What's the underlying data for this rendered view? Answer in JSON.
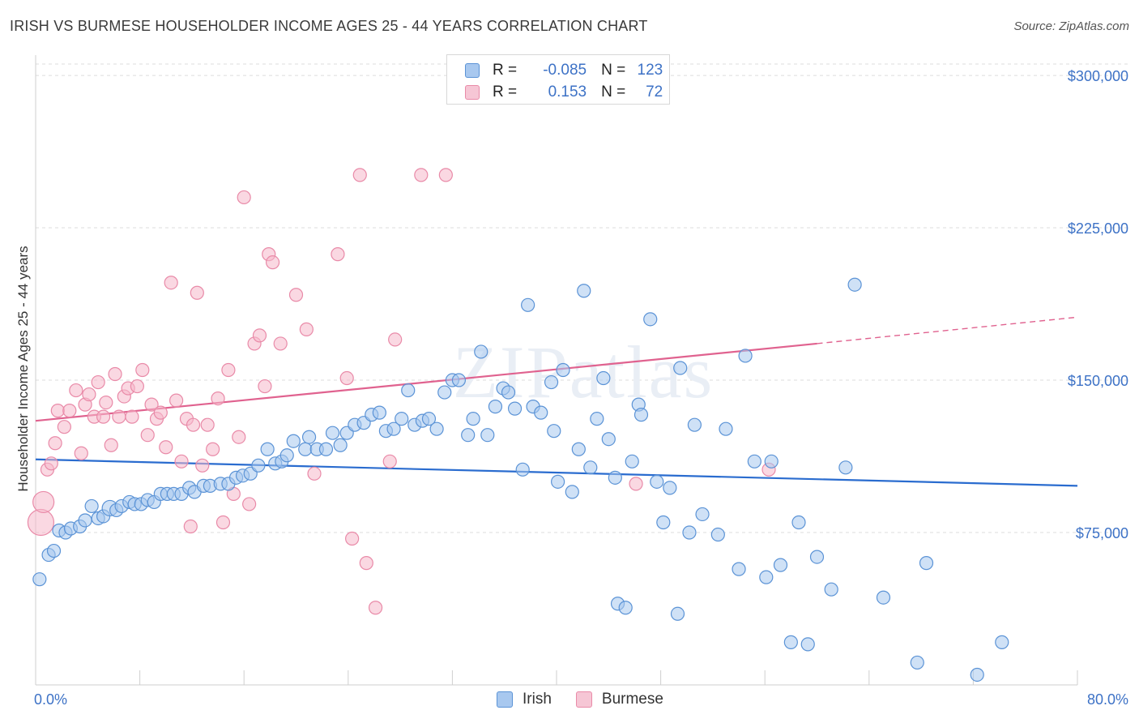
{
  "title": "IRISH VS BURMESE HOUSEHOLDER INCOME AGES 25 - 44 YEARS CORRELATION CHART",
  "source": "Source: ZipAtlas.com",
  "watermark": "ZIPatlas",
  "legend": {
    "rows": [
      {
        "r_label": "R =",
        "r_value": "-0.085",
        "n_label": "N =",
        "n_value": "123"
      },
      {
        "r_label": "R =",
        "r_value": "0.153",
        "n_label": "N =",
        "n_value": "72"
      }
    ]
  },
  "bottom_legend": {
    "irish": "Irish",
    "burmese": "Burmese"
  },
  "colors": {
    "irish_fill": "#a8c8ef",
    "irish_stroke": "#5b93d6",
    "irish_line": "#2a6ccf",
    "burmese_fill": "#f6b8cb",
    "burmese_stroke": "#e98aa8",
    "burmese_line": "#e0628f",
    "axis_text": "#3d72c6",
    "grid": "#dddddd"
  },
  "chart_data": {
    "type": "scatter",
    "title": "IRISH VS BURMESE HOUSEHOLDER INCOME AGES 25 - 44 YEARS CORRELATION CHART",
    "xlabel": "",
    "ylabel": "Householder Income Ages 25 - 44 years",
    "xlim": [
      0,
      80
    ],
    "ylim": [
      0,
      310000
    ],
    "x_tick_labels": [
      "0.0%",
      "80.0%"
    ],
    "y_ticks": [
      75000,
      150000,
      225000,
      300000
    ],
    "y_tick_labels": [
      "$75,000",
      "$150,000",
      "$225,000",
      "$300,000"
    ],
    "grid": true,
    "series": [
      {
        "name": "Irish",
        "trend": {
          "x": [
            0,
            80
          ],
          "y": [
            111000,
            98000
          ]
        },
        "points": [
          [
            0.3,
            52000
          ],
          [
            1.0,
            64000
          ],
          [
            1.4,
            66000
          ],
          [
            1.8,
            76000
          ],
          [
            2.3,
            75000
          ],
          [
            2.7,
            77000
          ],
          [
            3.4,
            78000
          ],
          [
            3.8,
            81000
          ],
          [
            4.3,
            88000
          ],
          [
            4.8,
            82000
          ],
          [
            5.2,
            83000
          ],
          [
            5.7,
            87000
          ],
          [
            6.2,
            86000
          ],
          [
            6.6,
            88000
          ],
          [
            7.2,
            90000
          ],
          [
            7.6,
            89000
          ],
          [
            8.1,
            89000
          ],
          [
            8.6,
            91000
          ],
          [
            9.1,
            90000
          ],
          [
            9.6,
            94000
          ],
          [
            10.1,
            94000
          ],
          [
            10.6,
            94000
          ],
          [
            11.2,
            94000
          ],
          [
            11.8,
            97000
          ],
          [
            12.2,
            95000
          ],
          [
            12.9,
            98000
          ],
          [
            13.4,
            98000
          ],
          [
            14.2,
            99000
          ],
          [
            14.8,
            99000
          ],
          [
            15.4,
            102000
          ],
          [
            15.9,
            103000
          ],
          [
            16.5,
            104000
          ],
          [
            17.1,
            108000
          ],
          [
            17.8,
            116000
          ],
          [
            18.4,
            109000
          ],
          [
            18.9,
            110000
          ],
          [
            19.3,
            113000
          ],
          [
            19.8,
            120000
          ],
          [
            20.7,
            116000
          ],
          [
            21.0,
            122000
          ],
          [
            21.6,
            116000
          ],
          [
            22.3,
            116000
          ],
          [
            22.8,
            124000
          ],
          [
            23.4,
            118000
          ],
          [
            23.9,
            124000
          ],
          [
            24.5,
            128000
          ],
          [
            25.2,
            129000
          ],
          [
            25.8,
            133000
          ],
          [
            26.4,
            134000
          ],
          [
            26.9,
            125000
          ],
          [
            27.5,
            126000
          ],
          [
            28.1,
            131000
          ],
          [
            28.6,
            145000
          ],
          [
            29.1,
            128000
          ],
          [
            29.7,
            130000
          ],
          [
            30.2,
            131000
          ],
          [
            30.8,
            126000
          ],
          [
            31.4,
            144000
          ],
          [
            32.0,
            150000
          ],
          [
            32.5,
            150000
          ],
          [
            33.2,
            123000
          ],
          [
            33.6,
            131000
          ],
          [
            34.2,
            164000
          ],
          [
            34.7,
            123000
          ],
          [
            35.3,
            137000
          ],
          [
            35.9,
            146000
          ],
          [
            36.3,
            144000
          ],
          [
            36.8,
            136000
          ],
          [
            37.4,
            106000
          ],
          [
            37.8,
            187000
          ],
          [
            38.2,
            137000
          ],
          [
            38.8,
            134000
          ],
          [
            39.6,
            149000
          ],
          [
            39.8,
            125000
          ],
          [
            40.1,
            100000
          ],
          [
            40.5,
            155000
          ],
          [
            41.2,
            95000
          ],
          [
            41.7,
            116000
          ],
          [
            42.1,
            194000
          ],
          [
            42.6,
            107000
          ],
          [
            43.1,
            131000
          ],
          [
            43.6,
            151000
          ],
          [
            44.0,
            121000
          ],
          [
            44.5,
            102000
          ],
          [
            44.7,
            40000
          ],
          [
            45.3,
            38000
          ],
          [
            45.8,
            110000
          ],
          [
            46.3,
            138000
          ],
          [
            46.5,
            133000
          ],
          [
            47.2,
            180000
          ],
          [
            47.7,
            100000
          ],
          [
            48.2,
            80000
          ],
          [
            48.7,
            97000
          ],
          [
            49.3,
            35000
          ],
          [
            49.5,
            156000
          ],
          [
            50.2,
            75000
          ],
          [
            50.6,
            128000
          ],
          [
            51.2,
            84000
          ],
          [
            52.4,
            74000
          ],
          [
            53.0,
            126000
          ],
          [
            54.0,
            57000
          ],
          [
            54.5,
            162000
          ],
          [
            55.2,
            110000
          ],
          [
            56.1,
            53000
          ],
          [
            56.5,
            110000
          ],
          [
            57.2,
            59000
          ],
          [
            58.0,
            21000
          ],
          [
            58.6,
            80000
          ],
          [
            59.3,
            20000
          ],
          [
            60.0,
            63000
          ],
          [
            61.1,
            47000
          ],
          [
            62.2,
            107000
          ],
          [
            62.9,
            197000
          ],
          [
            65.1,
            43000
          ],
          [
            67.7,
            11000
          ],
          [
            68.4,
            60000
          ],
          [
            72.3,
            5000
          ],
          [
            74.2,
            21000
          ]
        ]
      },
      {
        "name": "Burmese",
        "trend": {
          "x": [
            0,
            60
          ],
          "y": [
            130000,
            168000
          ]
        },
        "trend_extended": {
          "x": [
            60,
            80
          ],
          "y": [
            168000,
            181000
          ]
        },
        "points": [
          [
            0.4,
            80000
          ],
          [
            0.6,
            90000
          ],
          [
            0.9,
            106000
          ],
          [
            1.2,
            109000
          ],
          [
            1.5,
            119000
          ],
          [
            1.7,
            135000
          ],
          [
            2.2,
            127000
          ],
          [
            2.6,
            135000
          ],
          [
            3.1,
            145000
          ],
          [
            3.5,
            114000
          ],
          [
            3.8,
            138000
          ],
          [
            4.1,
            143000
          ],
          [
            4.5,
            132000
          ],
          [
            4.8,
            149000
          ],
          [
            5.2,
            132000
          ],
          [
            5.4,
            139000
          ],
          [
            5.8,
            118000
          ],
          [
            6.1,
            153000
          ],
          [
            6.4,
            132000
          ],
          [
            6.8,
            142000
          ],
          [
            7.1,
            146000
          ],
          [
            7.4,
            132000
          ],
          [
            7.8,
            147000
          ],
          [
            8.2,
            155000
          ],
          [
            8.6,
            123000
          ],
          [
            8.9,
            138000
          ],
          [
            9.3,
            131000
          ],
          [
            9.6,
            134000
          ],
          [
            10.0,
            117000
          ],
          [
            10.4,
            198000
          ],
          [
            10.8,
            140000
          ],
          [
            11.2,
            110000
          ],
          [
            11.6,
            131000
          ],
          [
            11.9,
            78000
          ],
          [
            12.1,
            128000
          ],
          [
            12.4,
            193000
          ],
          [
            12.8,
            108000
          ],
          [
            13.2,
            128000
          ],
          [
            13.6,
            116000
          ],
          [
            14.0,
            141000
          ],
          [
            14.4,
            80000
          ],
          [
            14.8,
            155000
          ],
          [
            15.2,
            94000
          ],
          [
            15.6,
            122000
          ],
          [
            16.0,
            240000
          ],
          [
            16.4,
            89000
          ],
          [
            16.8,
            168000
          ],
          [
            17.2,
            172000
          ],
          [
            17.6,
            147000
          ],
          [
            17.9,
            212000
          ],
          [
            18.2,
            208000
          ],
          [
            18.8,
            168000
          ],
          [
            20.0,
            192000
          ],
          [
            20.8,
            175000
          ],
          [
            21.4,
            104000
          ],
          [
            23.2,
            212000
          ],
          [
            23.9,
            151000
          ],
          [
            24.3,
            72000
          ],
          [
            24.9,
            251000
          ],
          [
            25.4,
            60000
          ],
          [
            26.1,
            38000
          ],
          [
            27.2,
            110000
          ],
          [
            27.6,
            170000
          ],
          [
            29.6,
            251000
          ],
          [
            31.5,
            251000
          ],
          [
            46.1,
            99000
          ],
          [
            56.3,
            106000
          ]
        ]
      }
    ]
  }
}
